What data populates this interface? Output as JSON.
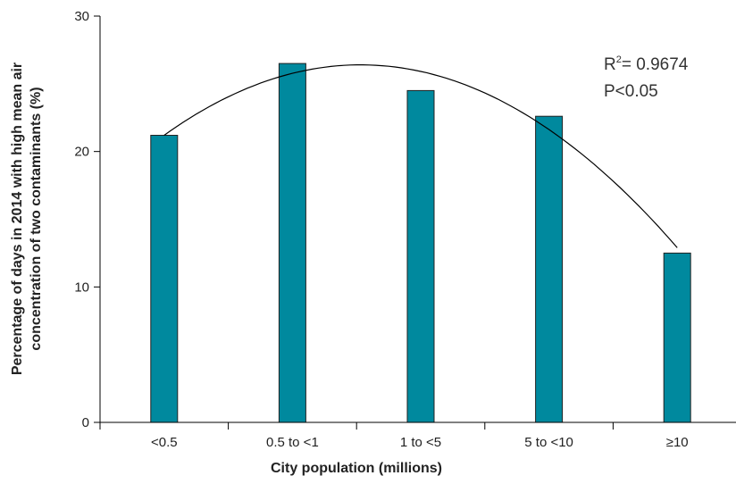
{
  "chart_data": {
    "type": "bar",
    "categories": [
      "<0.5",
      "0.5 to <1",
      "1 to <5",
      "5 to <10",
      "≥10"
    ],
    "values": [
      21.2,
      26.5,
      24.5,
      22.6,
      12.5
    ],
    "xlabel": "City population (millions)",
    "ylabel_lines": [
      "Percentage of days in 2014 with high mean air",
      "concentration of two contaminants (%)"
    ],
    "ylim": [
      0,
      30
    ],
    "yticks": [
      0,
      10,
      20,
      30
    ],
    "grid": false,
    "bar_color": "#00899E",
    "trend_line": {
      "type": "polynomial",
      "order": 2,
      "color": "#000000",
      "start_value": 21.2,
      "peak_value": 26.4,
      "end_value": 12.9
    },
    "annotations": {
      "r2_label": "R",
      "r2_superscript": "2",
      "r2_value": "= 0.9674",
      "p_value": "P<0.05"
    }
  }
}
